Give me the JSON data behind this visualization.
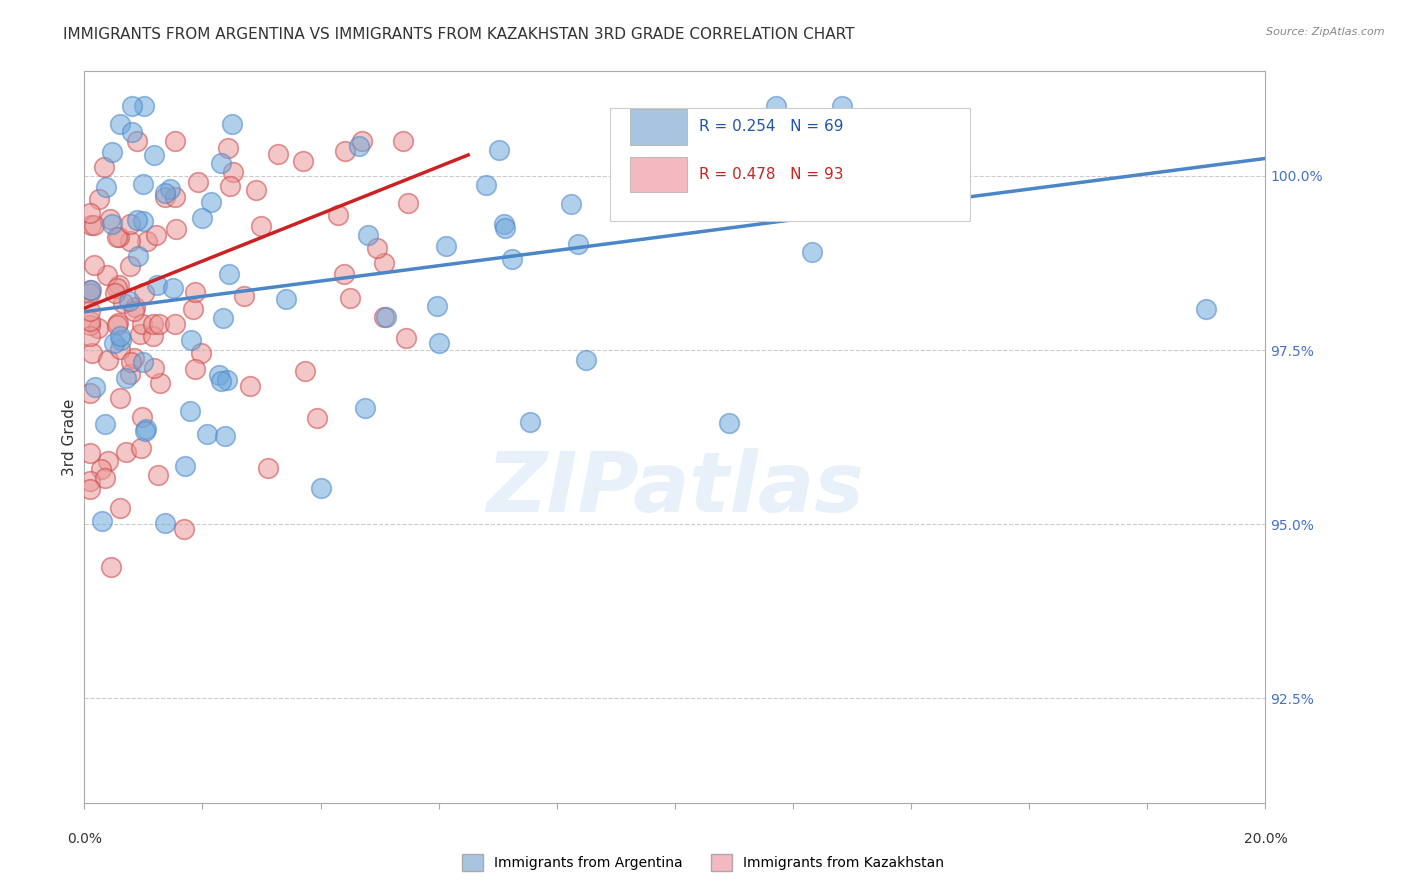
{
  "title": "IMMIGRANTS FROM ARGENTINA VS IMMIGRANTS FROM KAZAKHSTAN 3RD GRADE CORRELATION CHART",
  "source": "Source: ZipAtlas.com",
  "ylabel": "3rd Grade",
  "ylabel_right_ticks": [
    92.5,
    95.0,
    97.5,
    100.0
  ],
  "xmin": 0.0,
  "xmax": 0.2,
  "ymin": 91.0,
  "ymax": 101.5,
  "argentina_color": "#6fa8dc",
  "argentina_edge": "#4a86c8",
  "kazakhstan_color": "#ea9999",
  "kazakhstan_edge": "#cc4444",
  "argentina_R": 0.254,
  "argentina_N": 69,
  "kazakhstan_R": 0.478,
  "kazakhstan_N": 93,
  "legend_box_color_arg": "#a8c4e0",
  "legend_box_color_kaz": "#f4b8c1",
  "watermark": "ZIPatlas",
  "background_color": "#ffffff",
  "grid_color": "#cccccc",
  "title_fontsize": 11,
  "axis_label_fontsize": 10,
  "tick_fontsize": 9,
  "arg_line_x0": 0.0,
  "arg_line_y0": 98.05,
  "arg_line_x1": 0.2,
  "arg_line_y1": 100.25,
  "kaz_line_x0": 0.0,
  "kaz_line_y0": 98.1,
  "kaz_line_x1": 0.065,
  "kaz_line_y1": 100.3
}
